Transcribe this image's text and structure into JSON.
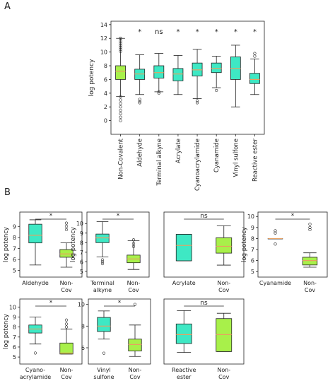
{
  "panels": {
    "a": "A",
    "b": "B"
  },
  "colors": {
    "cyan": "#3ee8c4",
    "lime": "#a8f04a",
    "median": "#e8a060",
    "frame": "#222222"
  },
  "chart_data": [
    {
      "type": "box",
      "ylabel": "log potency",
      "ylim": [
        -2,
        14.5
      ],
      "yticks": [
        0,
        2,
        4,
        6,
        8,
        10,
        12,
        14
      ],
      "categories": [
        "Non-Covalent",
        "Aldehyde",
        "Terminal alkyne",
        "Acrylate",
        "Cyanoacrylamide",
        "Cyanamide",
        "Vinyl sulfone",
        "Reactive ester"
      ],
      "significance": [
        "",
        "*",
        "ns",
        "*",
        "*",
        "*",
        "*",
        "*"
      ],
      "boxes": [
        {
          "q1": 6.0,
          "median": 7.2,
          "q3": 8.0,
          "whislo": 3.5,
          "whishi": 12.0,
          "fill": "lime"
        },
        {
          "q1": 6.0,
          "median": 6.8,
          "q3": 7.5,
          "whislo": 3.8,
          "whishi": 9.6,
          "fill": "cyan"
        },
        {
          "q1": 6.2,
          "median": 7.0,
          "q3": 8.0,
          "whislo": 4.2,
          "whishi": 9.8,
          "fill": "cyan"
        },
        {
          "q1": 5.8,
          "median": 6.8,
          "q3": 7.6,
          "whislo": 3.8,
          "whishi": 9.5,
          "fill": "cyan"
        },
        {
          "q1": 6.5,
          "median": 7.4,
          "q3": 8.4,
          "whislo": 3.2,
          "whishi": 10.4,
          "fill": "cyan"
        },
        {
          "q1": 7.0,
          "median": 7.6,
          "q3": 8.4,
          "whislo": 4.8,
          "whishi": 9.4,
          "fill": "cyan"
        },
        {
          "q1": 6.0,
          "median": 7.6,
          "q3": 9.3,
          "whislo": 2.0,
          "whishi": 11.0,
          "fill": "cyan"
        },
        {
          "q1": 5.4,
          "median": 6.0,
          "q3": 6.9,
          "whislo": 3.8,
          "whishi": 9.0,
          "fill": "cyan"
        }
      ],
      "fliers": [
        [
          0.0,
          0.5,
          1.0,
          1.5,
          2.0,
          2.5,
          3.0,
          3.5,
          12.0,
          12.0,
          11.6,
          11.3,
          11.0,
          10.7,
          10.4,
          10.1
        ],
        [
          3.1,
          2.8,
          2.6
        ],
        [
          4.0,
          4.2
        ],
        [],
        [
          2.6,
          2.9
        ],
        [
          4.4
        ],
        [],
        [
          9.4,
          9.8
        ]
      ]
    },
    {
      "type": "box",
      "ylabel": "log potency",
      "yticks": [
        5,
        6,
        7,
        8,
        9
      ],
      "ylim": [
        4.4,
        10.3
      ],
      "categories": [
        "Aldehyde",
        "Non-Cov"
      ],
      "significance": "*",
      "boxes": [
        {
          "q1": 7.5,
          "median": 8.2,
          "q3": 9.2,
          "whislo": 5.5,
          "whishi": 9.6,
          "fill": "cyan"
        },
        {
          "q1": 6.2,
          "median": 6.5,
          "q3": 6.9,
          "whislo": 5.3,
          "whishi": 7.5,
          "fill": "lime"
        }
      ],
      "fliers": [
        [],
        [
          8.7,
          9.0,
          9.3
        ]
      ]
    },
    {
      "type": "box",
      "ylabel": "log potency",
      "yticks": [
        5,
        6,
        7,
        8,
        9,
        10
      ],
      "ylim": [
        4.4,
        11.2
      ],
      "categories": [
        "Terminal alkyne",
        "Non-Cov"
      ],
      "significance": "*",
      "boxes": [
        {
          "q1": 8.0,
          "median": 8.5,
          "q3": 8.9,
          "whislo": 6.5,
          "whishi": 10.2,
          "fill": "cyan"
        },
        {
          "q1": 5.9,
          "median": 6.3,
          "q3": 6.7,
          "whislo": 5.2,
          "whishi": 8.2,
          "fill": "lime"
        }
      ],
      "fliers": [
        [
          6.2,
          6.0,
          5.8
        ],
        [
          7.6,
          7.9,
          8.3
        ]
      ]
    },
    {
      "type": "box",
      "yticks": [],
      "ylim": [
        3.6,
        11.2
      ],
      "categories": [
        "Acrylate",
        "Non-Cov"
      ],
      "significance": "ns",
      "boxes": [
        {
          "q1": 5.5,
          "median": 7.3,
          "q3": 8.6,
          "whislo": 5.5,
          "whishi": 8.6,
          "fill": "cyan"
        },
        {
          "q1": 6.4,
          "median": 7.2,
          "q3": 8.2,
          "whislo": 5.0,
          "whishi": 9.6,
          "fill": "lime"
        }
      ],
      "fliers": [
        [],
        []
      ]
    },
    {
      "type": "box",
      "ylabel": "log potency",
      "yticks": [
        5,
        6,
        7,
        8,
        9,
        10
      ],
      "ylim": [
        4.5,
        10.4
      ],
      "categories": [
        "Cyanamide",
        "Non-Cov"
      ],
      "significance": "*",
      "boxes": [
        {
          "q1": 8.0,
          "median": 8.0,
          "q3": 8.0,
          "whislo": 8.0,
          "whishi": 8.0,
          "fill": "cyan"
        },
        {
          "q1": 5.6,
          "median": 6.0,
          "q3": 6.3,
          "whislo": 5.4,
          "whishi": 6.7,
          "fill": "lime"
        }
      ],
      "fliers": [
        [
          8.5,
          8.7,
          7.5
        ],
        [
          8.8,
          9.0,
          9.3
        ]
      ]
    },
    {
      "type": "box",
      "ylabel": "log potency",
      "yticks": [
        5,
        6,
        7,
        8,
        9,
        10
      ],
      "ylim": [
        4.3,
        10.8
      ],
      "categories": [
        "Cyano-acrylamide",
        "Non-Cov"
      ],
      "significance": "*",
      "boxes": [
        {
          "q1": 7.4,
          "median": 7.8,
          "q3": 8.2,
          "whislo": 6.3,
          "whishi": 9.0,
          "fill": "cyan"
        },
        {
          "q1": 5.3,
          "median": 5.4,
          "q3": 6.4,
          "whislo": 5.3,
          "whishi": 7.8,
          "fill": "lime"
        }
      ],
      "fliers": [
        [
          5.4
        ],
        [
          8.7,
          8.3,
          8.0
        ]
      ]
    },
    {
      "type": "box",
      "yticks": [
        6,
        8,
        10
      ],
      "ylim": [
        4.5,
        10.5
      ],
      "categories": [
        "Vinyl sulfone",
        "Non-Cov"
      ],
      "significance": "*",
      "boxes": [
        {
          "q1": 7.5,
          "median": 8.0,
          "q3": 8.8,
          "whislo": 6.8,
          "whishi": 9.4,
          "fill": "cyan"
        },
        {
          "q1": 5.7,
          "median": 6.3,
          "q3": 6.8,
          "whislo": 5.2,
          "whishi": 8.1,
          "fill": "lime"
        }
      ],
      "fliers": [
        [
          5.5
        ],
        [
          10.0
        ]
      ]
    },
    {
      "type": "box",
      "yticks": [],
      "ylim": [
        3.7,
        11.0
      ],
      "categories": [
        "Reactive ester",
        "Non-Cov"
      ],
      "significance": "ns",
      "boxes": [
        {
          "q1": 6.0,
          "median": 7.0,
          "q3": 8.2,
          "whislo": 5.0,
          "whishi": 9.7,
          "fill": "cyan"
        },
        {
          "q1": 5.1,
          "median": 7.0,
          "q3": 8.8,
          "whislo": 5.1,
          "whishi": 9.4,
          "fill": "lime"
        }
      ],
      "fliers": [
        [],
        []
      ]
    }
  ]
}
